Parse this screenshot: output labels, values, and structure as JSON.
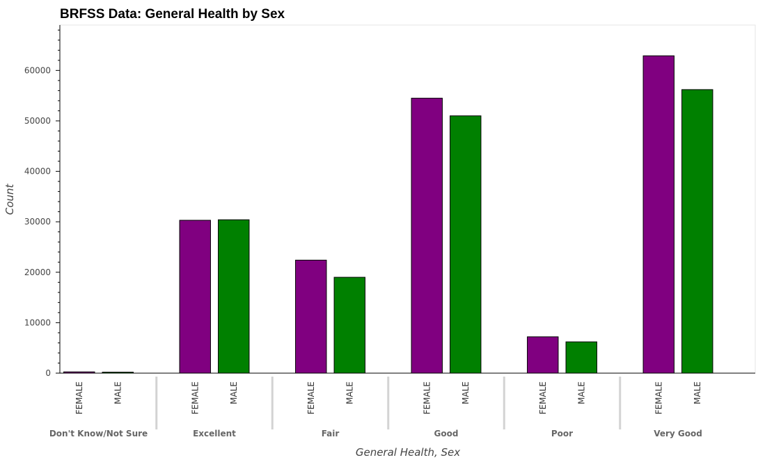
{
  "chart_data": {
    "type": "bar",
    "title": "BRFSS Data: General Health by Sex",
    "xlabel": "General Health, Sex",
    "ylabel": "Count",
    "ylim": [
      0,
      69000
    ],
    "yticks": [
      0,
      10000,
      20000,
      30000,
      40000,
      50000,
      60000
    ],
    "categories": [
      "Don't Know/Not Sure",
      "Excellent",
      "Fair",
      "Good",
      "Poor",
      "Very Good"
    ],
    "subcategories": [
      "FEMALE",
      "MALE"
    ],
    "series": [
      {
        "name": "FEMALE",
        "color": "#800080",
        "values": [
          250,
          30300,
          22400,
          54500,
          7200,
          62900
        ]
      },
      {
        "name": "MALE",
        "color": "#008000",
        "values": [
          200,
          30400,
          19000,
          51000,
          6200,
          56200
        ]
      }
    ],
    "grid": false,
    "legend": "none"
  }
}
